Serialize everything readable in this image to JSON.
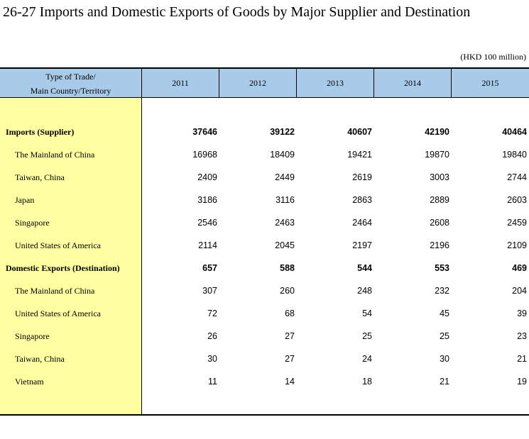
{
  "title": "26-27  Imports and Domestic Exports of Goods by Major Supplier and Destination",
  "unit": "(HKD 100 million)",
  "header": {
    "stub_line1": "Type of Trade/",
    "stub_line2": "Main Country/Territory",
    "years": [
      "2011",
      "2012",
      "2013",
      "2014",
      "2015"
    ]
  },
  "rows": [
    {
      "label": "Imports (Supplier)",
      "bold": true,
      "values": [
        "37646",
        "39122",
        "40607",
        "42190",
        "40464"
      ]
    },
    {
      "label": "The Mainland of China",
      "bold": false,
      "values": [
        "16968",
        "18409",
        "19421",
        "19870",
        "19840"
      ]
    },
    {
      "label": "Taiwan, China",
      "bold": false,
      "values": [
        "2409",
        "2449",
        "2619",
        "3003",
        "2744"
      ]
    },
    {
      "label": "Japan",
      "bold": false,
      "values": [
        "3186",
        "3116",
        "2863",
        "2889",
        "2603"
      ]
    },
    {
      "label": "Singapore",
      "bold": false,
      "values": [
        "2546",
        "2463",
        "2464",
        "2608",
        "2459"
      ]
    },
    {
      "label": "United States of America",
      "bold": false,
      "values": [
        "2114",
        "2045",
        "2197",
        "2196",
        "2109"
      ]
    },
    {
      "label": "Domestic Exports (Destination)",
      "bold": true,
      "values": [
        "657",
        "588",
        "544",
        "553",
        "469"
      ]
    },
    {
      "label": "The Mainland of China",
      "bold": false,
      "values": [
        "307",
        "260",
        "248",
        "232",
        "204"
      ]
    },
    {
      "label": "United States of America",
      "bold": false,
      "values": [
        "72",
        "68",
        "54",
        "45",
        "39"
      ]
    },
    {
      "label": "Singapore",
      "bold": false,
      "values": [
        "26",
        "27",
        "25",
        "25",
        "23"
      ]
    },
    {
      "label": "Taiwan, China",
      "bold": false,
      "values": [
        "30",
        "27",
        "24",
        "30",
        "21"
      ]
    },
    {
      "label": "Vietnam",
      "bold": false,
      "values": [
        "11",
        "14",
        "18",
        "21",
        "19"
      ]
    }
  ]
}
